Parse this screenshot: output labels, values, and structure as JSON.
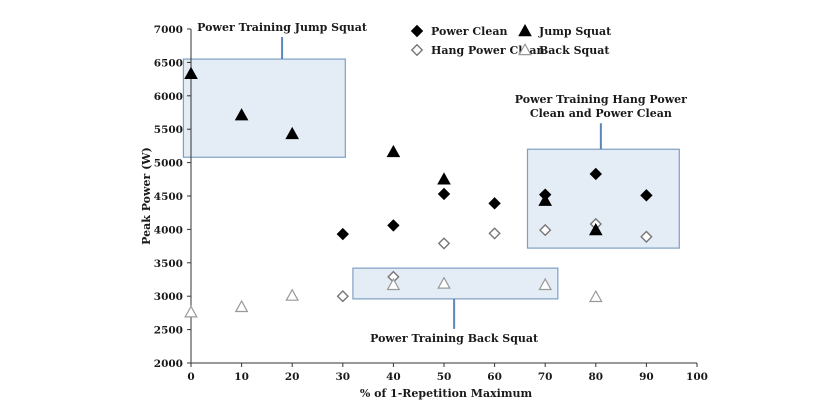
{
  "chart_data": {
    "type": "scatter",
    "xlabel": "% of 1-Repetition Maximum",
    "ylabel": "Peak Power (W)",
    "xlim": [
      0,
      100
    ],
    "ylim": [
      2000,
      7000
    ],
    "x_ticks": [
      "0",
      "10",
      "20",
      "30",
      "40",
      "50",
      "60",
      "70",
      "80",
      "90",
      "100"
    ],
    "y_ticks": [
      "2000",
      "2500",
      "3000",
      "3500",
      "4000",
      "4500",
      "5000",
      "5500",
      "6000",
      "6500",
      "7000"
    ],
    "grid": false,
    "legend_position": "top-right",
    "series": [
      {
        "name": "Power Clean",
        "marker": "diamond-filled",
        "color": "#000000",
        "points": [
          [
            30,
            3930
          ],
          [
            40,
            4060
          ],
          [
            50,
            4530
          ],
          [
            60,
            4390
          ],
          [
            70,
            4520
          ],
          [
            80,
            4830
          ],
          [
            90,
            4510
          ]
        ]
      },
      {
        "name": "Hang Power Clean",
        "marker": "diamond-open",
        "color": "#777777",
        "points": [
          [
            30,
            3000
          ],
          [
            40,
            3290
          ],
          [
            50,
            3790
          ],
          [
            60,
            3940
          ],
          [
            70,
            3990
          ],
          [
            80,
            4080
          ],
          [
            90,
            3890
          ]
        ]
      },
      {
        "name": "Jump Squat",
        "marker": "triangle-filled",
        "color": "#000000",
        "points": [
          [
            0,
            6330
          ],
          [
            10,
            5710
          ],
          [
            20,
            5430
          ],
          [
            40,
            5160
          ],
          [
            50,
            4750
          ],
          [
            70,
            4430
          ],
          [
            80,
            3990
          ]
        ]
      },
      {
        "name": "Back Squat",
        "marker": "triangle-open",
        "color": "#999999",
        "points": [
          [
            0,
            2760
          ],
          [
            10,
            2840
          ],
          [
            20,
            3010
          ],
          [
            40,
            3170
          ],
          [
            50,
            3190
          ],
          [
            70,
            3170
          ],
          [
            80,
            2990
          ]
        ]
      }
    ],
    "annotations": [
      {
        "lines": [
          "Power Training Jump Squat"
        ],
        "box_x": [
          -1.5,
          30.5
        ],
        "box_y": [
          5080,
          6550
        ],
        "label_side": "above"
      },
      {
        "lines": [
          "Power Training Hang Power",
          "Clean and Power Clean"
        ],
        "box_x": [
          66.5,
          96.5
        ],
        "box_y": [
          3720,
          5200
        ],
        "label_side": "above"
      },
      {
        "lines": [
          "Power Training Back Squat"
        ],
        "box_x": [
          32,
          72.5
        ],
        "box_y": [
          2960,
          3420
        ],
        "label_side": "below"
      }
    ],
    "annotation_fill": "#e4ecf5",
    "annotation_stroke": "#7fa0c4"
  }
}
